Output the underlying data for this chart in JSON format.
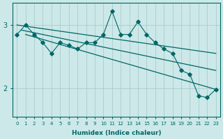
{
  "xlabel": "Humidex (Indice chaleur)",
  "bg_color": "#cce8e8",
  "grid_color": "#aacccc",
  "line_color": "#006666",
  "x_min": 0,
  "x_max": 23,
  "y_min": 1.55,
  "y_max": 3.35,
  "yticks": [
    2,
    3
  ],
  "jagged_y": [
    2.85,
    3.0,
    2.85,
    2.72,
    2.55,
    2.72,
    2.68,
    2.62,
    2.72,
    2.72,
    2.85,
    3.22,
    2.85,
    2.85,
    3.05,
    2.85,
    2.72,
    2.62,
    2.55,
    2.28,
    2.22,
    1.88,
    1.85,
    1.98
  ],
  "trend_lines": [
    {
      "x0": 0.0,
      "y0": 3.0,
      "x1": 23.0,
      "y1": 2.55
    },
    {
      "x0": 0.5,
      "y0": 2.92,
      "x1": 23.0,
      "y1": 2.28
    },
    {
      "x0": 1.0,
      "y0": 2.85,
      "x1": 23.0,
      "y1": 1.98
    }
  ]
}
